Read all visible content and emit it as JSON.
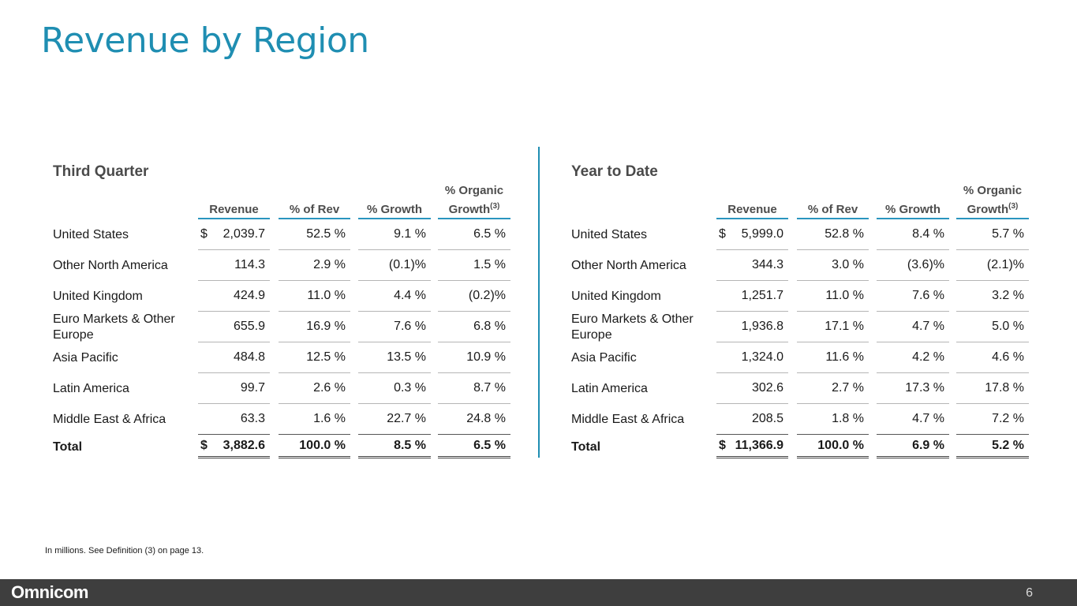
{
  "slide": {
    "title": "Revenue by Region",
    "footnote": "In millions.  See Definition (3) on page 13.",
    "logo": "Omnicom",
    "page_number": "6"
  },
  "columns": {
    "revenue": "Revenue",
    "pct_rev": "% of Rev",
    "pct_growth": "% Growth",
    "pct_organic_line1": "% Organic",
    "pct_organic_line2": "Growth",
    "pct_organic_sup": "(3)"
  },
  "third_quarter": {
    "title": "Third Quarter",
    "rows": [
      {
        "region": "United States",
        "dollar": "$",
        "revenue": "2,039.7",
        "pct_rev": "52.5 %",
        "growth": "9.1 %",
        "organic": "6.5 %"
      },
      {
        "region": "Other North America",
        "dollar": "",
        "revenue": "114.3",
        "pct_rev": "2.9 %",
        "growth": "(0.1)%",
        "organic": "1.5 %"
      },
      {
        "region": "United Kingdom",
        "dollar": "",
        "revenue": "424.9",
        "pct_rev": "11.0 %",
        "growth": "4.4 %",
        "organic": "(0.2)%"
      },
      {
        "region": "Euro Markets & Other Europe",
        "dollar": "",
        "revenue": "655.9",
        "pct_rev": "16.9 %",
        "growth": "7.6 %",
        "organic": "6.8 %"
      },
      {
        "region": "Asia Pacific",
        "dollar": "",
        "revenue": "484.8",
        "pct_rev": "12.5 %",
        "growth": "13.5 %",
        "organic": "10.9 %"
      },
      {
        "region": "Latin America",
        "dollar": "",
        "revenue": "99.7",
        "pct_rev": "2.6 %",
        "growth": "0.3 %",
        "organic": "8.7 %"
      },
      {
        "region": "Middle East & Africa",
        "dollar": "",
        "revenue": "63.3",
        "pct_rev": "1.6 %",
        "growth": "22.7 %",
        "organic": "24.8 %"
      }
    ],
    "total": {
      "region": "Total",
      "dollar": "$",
      "revenue": "3,882.6",
      "pct_rev": "100.0 %",
      "growth": "8.5 %",
      "organic": "6.5 %"
    }
  },
  "year_to_date": {
    "title": "Year to Date",
    "rows": [
      {
        "region": "United States",
        "dollar": "$",
        "revenue": "5,999.0",
        "pct_rev": "52.8 %",
        "growth": "8.4 %",
        "organic": "5.7 %"
      },
      {
        "region": "Other North America",
        "dollar": "",
        "revenue": "344.3",
        "pct_rev": "3.0 %",
        "growth": "(3.6)%",
        "organic": "(2.1)%"
      },
      {
        "region": "United Kingdom",
        "dollar": "",
        "revenue": "1,251.7",
        "pct_rev": "11.0 %",
        "growth": "7.6 %",
        "organic": "3.2 %"
      },
      {
        "region": "Euro Markets & Other Europe",
        "dollar": "",
        "revenue": "1,936.8",
        "pct_rev": "17.1 %",
        "growth": "4.7 %",
        "organic": "5.0 %"
      },
      {
        "region": "Asia Pacific",
        "dollar": "",
        "revenue": "1,324.0",
        "pct_rev": "11.6 %",
        "growth": "4.2 %",
        "organic": "4.6 %"
      },
      {
        "region": "Latin America",
        "dollar": "",
        "revenue": "302.6",
        "pct_rev": "2.7 %",
        "growth": "17.3 %",
        "organic": "17.8 %"
      },
      {
        "region": "Middle East & Africa",
        "dollar": "",
        "revenue": "208.5",
        "pct_rev": "1.8 %",
        "growth": "4.7 %",
        "organic": "7.2 %"
      }
    ],
    "total": {
      "region": "Total",
      "dollar": "$",
      "revenue": "11,366.9",
      "pct_rev": "100.0 %",
      "growth": "6.9 %",
      "organic": "5.2 %"
    }
  }
}
